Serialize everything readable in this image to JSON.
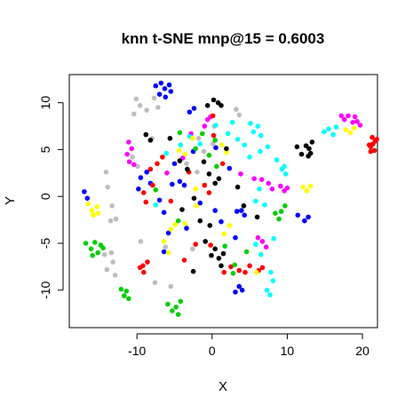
{
  "chart_data": {
    "type": "scatter",
    "title": "knn t-SNE mnp@15 = 0.6003",
    "xlabel": "X",
    "ylabel": "Y",
    "xlim": [
      -19,
      22
    ],
    "ylim": [
      -14,
      13
    ],
    "xticks": [
      -10,
      0,
      10,
      20
    ],
    "xtick_labels": [
      "-10",
      "0",
      "10",
      "20"
    ],
    "yticks": [
      -10,
      -5,
      0,
      5,
      10
    ],
    "ytick_labels": [
      "-10",
      "-5",
      "0",
      "5",
      "10"
    ],
    "grid": false,
    "legend": false,
    "series": [
      {
        "color": "#0000FF",
        "points": [
          [
            -7.5,
            11.8
          ],
          [
            -6.8,
            12.1
          ],
          [
            -6.3,
            11.5
          ],
          [
            -5.7,
            11.9
          ],
          [
            -7.0,
            10.9
          ],
          [
            -6.2,
            10.6
          ],
          [
            -5.5,
            11.2
          ],
          [
            -17,
            0.5
          ],
          [
            -16.6,
            -0.2
          ],
          [
            -3.0,
            9.0
          ],
          [
            -2.4,
            9.4
          ],
          [
            -9.5,
            2.0
          ],
          [
            -8.7,
            2.6
          ],
          [
            -8.2,
            1.4
          ],
          [
            -7.0,
            -0.4
          ],
          [
            -6.4,
            -1.7
          ],
          [
            -5.3,
            1.3
          ],
          [
            -4.3,
            1.6
          ],
          [
            -3.7,
            1.2
          ],
          [
            -5.8,
            -3.9
          ],
          [
            -6.4,
            -5.9
          ],
          [
            -3.4,
            -3.4
          ],
          [
            -1.6,
            -0.7
          ],
          [
            0.4,
            -1.5
          ],
          [
            1.2,
            -2.7
          ],
          [
            2.3,
            3.0
          ],
          [
            3.1,
            -4.4
          ],
          [
            3.3,
            -1.6
          ],
          [
            3.9,
            -1.5
          ],
          [
            4.3,
            -2.0
          ],
          [
            11.4,
            -2.0
          ],
          [
            12.3,
            -2.6
          ],
          [
            12.8,
            -2.2
          ],
          [
            3.1,
            -10.2
          ],
          [
            3.6,
            -9.6
          ],
          [
            4.0,
            -10.0
          ],
          [
            -9.8,
            0.8
          ],
          [
            -5.0,
            3.5
          ],
          [
            -2.5,
            4.8
          ],
          [
            0.5,
            5.2
          ]
        ]
      },
      {
        "color": "#BEBEBE",
        "points": [
          [
            -10.1,
            10.4
          ],
          [
            -9.6,
            9.7
          ],
          [
            -10.4,
            8.8
          ],
          [
            -8.7,
            9.2
          ],
          [
            -7.7,
            10.5
          ],
          [
            -7.2,
            9.5
          ],
          [
            -8.0,
            6.2
          ],
          [
            -10.6,
            4.2
          ],
          [
            -9.9,
            3.2
          ],
          [
            -14.1,
            2.6
          ],
          [
            -13.9,
            1.0
          ],
          [
            -13.3,
            -1.0
          ],
          [
            -12.8,
            -2.4
          ],
          [
            -13.5,
            -2.6
          ],
          [
            -14.3,
            -6.2
          ],
          [
            -13.4,
            -6.0
          ],
          [
            -13.2,
            -7.0
          ],
          [
            -14.0,
            -7.8
          ],
          [
            -12.9,
            -8.4
          ],
          [
            -9.5,
            -4.8
          ],
          [
            -7.6,
            -9.2
          ],
          [
            -5.5,
            -9.6
          ],
          [
            -2.6,
            -5.6
          ],
          [
            -2.0,
            2.6
          ],
          [
            -1.8,
            6.2
          ],
          [
            -1.1,
            4.8
          ],
          [
            0.1,
            5.6
          ],
          [
            0.3,
            7.5
          ],
          [
            3.2,
            9.3
          ],
          [
            3.6,
            8.7
          ],
          [
            -3.4,
            3.5
          ],
          [
            -6.2,
            -5.4
          ]
        ]
      },
      {
        "color": "#FF00FF",
        "points": [
          [
            -11.1,
            5.8
          ],
          [
            -10.7,
            5.1
          ],
          [
            -11.3,
            4.5
          ],
          [
            -11.0,
            3.7
          ],
          [
            -10.4,
            3.4
          ],
          [
            -2.8,
            6.7
          ],
          [
            -1.0,
            7.5
          ],
          [
            -0.6,
            8.2
          ],
          [
            -0.2,
            8.5
          ],
          [
            3.8,
            2.4
          ],
          [
            5.6,
            1.9
          ],
          [
            6.6,
            1.8
          ],
          [
            7.5,
            1.4
          ],
          [
            8.0,
            0.8
          ],
          [
            9.1,
            1.1
          ],
          [
            9.6,
            0.6
          ],
          [
            10.0,
            0.9
          ],
          [
            6.1,
            -4.4
          ],
          [
            6.7,
            -4.8
          ],
          [
            7.2,
            -5.4
          ],
          [
            17.2,
            8.6
          ],
          [
            17.6,
            8.2
          ],
          [
            18.1,
            8.6
          ],
          [
            18.7,
            7.9
          ],
          [
            19.0,
            8.5
          ],
          [
            19.3,
            8.0
          ],
          [
            19.7,
            7.6
          ],
          [
            -3.9,
            4.1
          ],
          [
            -6.0,
            2.5
          ]
        ]
      },
      {
        "color": "#FF0000",
        "points": [
          [
            -8.2,
            2.9
          ],
          [
            -7.3,
            3.5
          ],
          [
            -6.6,
            4.2
          ],
          [
            -7.9,
            1.2
          ],
          [
            -9.1,
            0.4
          ],
          [
            -8.8,
            -0.6
          ],
          [
            -3.1,
            2.6
          ],
          [
            -1.0,
            1.2
          ],
          [
            -0.4,
            0.4
          ],
          [
            -9.2,
            -7.4
          ],
          [
            -9.6,
            -7.6
          ],
          [
            -8.6,
            -7.0
          ],
          [
            -9.1,
            -8.1
          ],
          [
            -2.2,
            -5.1
          ],
          [
            -0.2,
            -5.2
          ],
          [
            1.6,
            -8.1
          ],
          [
            2.5,
            -7.5
          ],
          [
            3.6,
            -7.9
          ],
          [
            4.4,
            -8.1
          ],
          [
            5.0,
            -7.4
          ],
          [
            6.2,
            -7.9
          ],
          [
            6.7,
            -7.6
          ],
          [
            -3.7,
            -6.8
          ],
          [
            0.1,
            8.6
          ],
          [
            0.2,
            6.5
          ],
          [
            1.4,
            3.5
          ],
          [
            21.1,
            5.3
          ],
          [
            21.4,
            5.6
          ],
          [
            21.7,
            5.9
          ],
          [
            20.9,
            5.5
          ],
          [
            21.1,
            4.8
          ],
          [
            21.6,
            4.9
          ],
          [
            21.9,
            6.1
          ],
          [
            21.3,
            6.3
          ],
          [
            -5.5,
            -0.5
          ]
        ]
      },
      {
        "color": "#00FFFF",
        "points": [
          [
            0.5,
            7.6
          ],
          [
            2.1,
            6.7
          ],
          [
            2.7,
            7.9
          ],
          [
            3.4,
            6.1
          ],
          [
            4.3,
            5.5
          ],
          [
            5.1,
            7.8
          ],
          [
            5.5,
            6.9
          ],
          [
            6.1,
            7.5
          ],
          [
            6.5,
            6.5
          ],
          [
            5.0,
            4.2
          ],
          [
            6.4,
            4.8
          ],
          [
            7.4,
            5.3
          ],
          [
            8.6,
            3.9
          ],
          [
            9.3,
            2.9
          ],
          [
            9.6,
            3.2
          ],
          [
            9.8,
            2.4
          ],
          [
            5.8,
            -0.5
          ],
          [
            6.3,
            0.8
          ],
          [
            7.0,
            -0.9
          ],
          [
            5.8,
            -5.1
          ],
          [
            7.8,
            -8.1
          ],
          [
            8.1,
            -9.0
          ],
          [
            7.3,
            -10.0
          ],
          [
            7.7,
            -10.5
          ],
          [
            -7.5,
            -0.9
          ],
          [
            -6.1,
            4.6
          ],
          [
            -4.2,
            5.5
          ],
          [
            -3.0,
            6.4
          ],
          [
            -1.6,
            5.6
          ],
          [
            14.9,
            6.9
          ],
          [
            15.5,
            7.2
          ],
          [
            16.1,
            6.6
          ],
          [
            16.5,
            7.4
          ],
          [
            8.2,
            -4.5
          ],
          [
            6.5,
            -6.2
          ]
        ]
      },
      {
        "color": "#FFFF00",
        "points": [
          [
            -16.5,
            -0.8
          ],
          [
            -16.0,
            -1.5
          ],
          [
            -15.3,
            -1.1
          ],
          [
            -15.8,
            -2.0
          ],
          [
            -15.2,
            -1.8
          ],
          [
            -6.4,
            -4.8
          ],
          [
            -5.5,
            -3.5
          ],
          [
            -4.9,
            -3.0
          ],
          [
            -5.8,
            -6.0
          ],
          [
            -3.6,
            -2.9
          ],
          [
            -2.1,
            -1.0
          ],
          [
            -2.2,
            0.8
          ],
          [
            -2.6,
            6.2
          ],
          [
            -4.4,
            4.9
          ],
          [
            -3.6,
            4.5
          ],
          [
            1.6,
            -4.0
          ],
          [
            2.3,
            -3.1
          ],
          [
            1.3,
            5.5
          ],
          [
            1.9,
            4.7
          ],
          [
            12.1,
            1.0
          ],
          [
            12.6,
            0.6
          ],
          [
            13.1,
            1.1
          ],
          [
            17.8,
            7.1
          ],
          [
            18.4,
            6.8
          ],
          [
            18.9,
            7.3
          ],
          [
            5.9,
            -8.1
          ]
        ]
      },
      {
        "color": "#00CD00",
        "points": [
          [
            -16.8,
            -5.0
          ],
          [
            -16.1,
            -5.6
          ],
          [
            -15.6,
            -4.9
          ],
          [
            -15.9,
            -6.3
          ],
          [
            -15.2,
            -6.0
          ],
          [
            -14.8,
            -5.2
          ],
          [
            -14.5,
            -5.5
          ],
          [
            -12.1,
            -9.9
          ],
          [
            -11.7,
            -10.6
          ],
          [
            -11.4,
            -10.1
          ],
          [
            -11.1,
            -10.9
          ],
          [
            -5.9,
            -11.5
          ],
          [
            -5.3,
            -12.2
          ],
          [
            -4.8,
            -11.8
          ],
          [
            -4.5,
            -12.6
          ],
          [
            -4.2,
            -11.2
          ],
          [
            -2.2,
            5.1
          ],
          [
            -1.3,
            6.7
          ],
          [
            -0.4,
            4.4
          ],
          [
            0.6,
            3.2
          ],
          [
            -4.5,
            -2.6
          ],
          [
            1.7,
            -5.3
          ],
          [
            3.0,
            -7.3
          ],
          [
            2.8,
            -8.2
          ],
          [
            4.6,
            -5.9
          ],
          [
            8.4,
            -1.8
          ],
          [
            8.9,
            -2.4
          ],
          [
            9.2,
            -1.6
          ],
          [
            9.7,
            -1.0
          ],
          [
            -7.5,
            0.7
          ],
          [
            -4.3,
            6.8
          ],
          [
            0.4,
            6.0
          ]
        ]
      },
      {
        "color": "#000000",
        "points": [
          [
            -0.6,
            9.7
          ],
          [
            0.2,
            10.3
          ],
          [
            0.8,
            10.0
          ],
          [
            1.2,
            9.7
          ],
          [
            -8.8,
            6.6
          ],
          [
            -8.2,
            6.0
          ],
          [
            -5.6,
            6.2
          ],
          [
            -4.3,
            3.8
          ],
          [
            -3.3,
            2.9
          ],
          [
            -1.1,
            3.7
          ],
          [
            -0.4,
            2.4
          ],
          [
            0.4,
            1.4
          ],
          [
            0.9,
            1.9
          ],
          [
            -4.0,
            -1.4
          ],
          [
            -2.4,
            -0.2
          ],
          [
            -1.6,
            -2.6
          ],
          [
            -0.3,
            -3.1
          ],
          [
            -0.1,
            -6.3
          ],
          [
            0.4,
            -5.6
          ],
          [
            0.9,
            -6.6
          ],
          [
            1.5,
            -6.1
          ],
          [
            1.2,
            -7.4
          ],
          [
            -2.5,
            -8.0
          ],
          [
            1.9,
            5.1
          ],
          [
            3.4,
            1.0
          ],
          [
            4.2,
            -1.0
          ],
          [
            11.3,
            5.3
          ],
          [
            11.9,
            4.5
          ],
          [
            12.5,
            5.4
          ],
          [
            12.9,
            5.1
          ],
          [
            13.3,
            5.8
          ],
          [
            13.1,
            4.6
          ],
          [
            12.8,
            4.3
          ],
          [
            6.0,
            -2.2
          ],
          [
            -0.9,
            -4.8
          ]
        ]
      }
    ]
  }
}
